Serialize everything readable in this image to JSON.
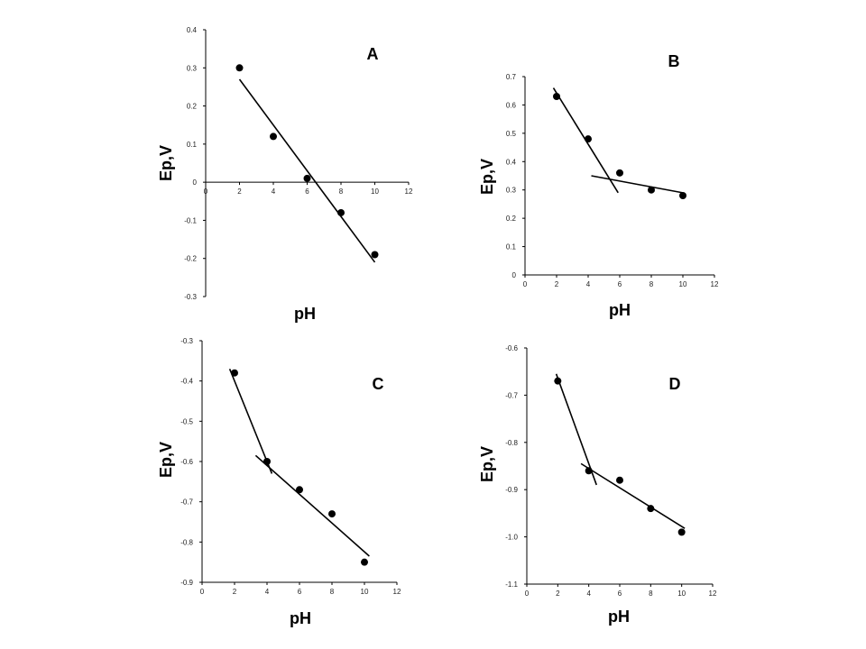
{
  "chart_data": [
    {
      "type": "scatter",
      "panel_label": "A",
      "xlabel": "pH",
      "ylabel": "Ep,V",
      "xlim": [
        0,
        12
      ],
      "ylim": [
        -0.3,
        0.4
      ],
      "x_ticks": [
        "0",
        "2",
        "4",
        "6",
        "8",
        "10",
        "12"
      ],
      "y_ticks": [
        "0.4",
        "0.3",
        "0.2",
        "0.1",
        "0",
        "-0.1",
        "-0.2",
        "-0.3"
      ],
      "points": [
        [
          2,
          0.3
        ],
        [
          4,
          0.12
        ],
        [
          6,
          0.01
        ],
        [
          8,
          -0.08
        ],
        [
          10,
          -0.19
        ]
      ],
      "fit_lines": [
        [
          [
            2,
            0.27
          ],
          [
            10,
            -0.21
          ]
        ]
      ],
      "x_axis_at_zero": true
    },
    {
      "type": "scatter",
      "panel_label": "B",
      "xlabel": "pH",
      "ylabel": "Ep,V",
      "xlim": [
        0,
        12
      ],
      "ylim": [
        0,
        0.7
      ],
      "x_ticks": [
        "0",
        "2",
        "4",
        "6",
        "8",
        "10",
        "12"
      ],
      "y_ticks": [
        "0.7",
        "0.6",
        "0.5",
        "0.4",
        "0.3",
        "0.2",
        "0.1",
        "0"
      ],
      "points": [
        [
          2,
          0.63
        ],
        [
          4,
          0.48
        ],
        [
          6,
          0.36
        ],
        [
          8,
          0.3
        ],
        [
          10,
          0.28
        ]
      ],
      "fit_lines": [
        [
          [
            1.8,
            0.66
          ],
          [
            5.9,
            0.29
          ]
        ],
        [
          [
            4.2,
            0.35
          ],
          [
            10,
            0.29
          ]
        ]
      ],
      "x_axis_at_zero": false
    },
    {
      "type": "scatter",
      "panel_label": "C",
      "xlabel": "pH",
      "ylabel": "Ep,V",
      "xlim": [
        0,
        12
      ],
      "ylim": [
        -0.9,
        -0.3
      ],
      "x_ticks": [
        "0",
        "2",
        "4",
        "6",
        "8",
        "10",
        "12"
      ],
      "y_ticks": [
        "-0.3",
        "-0.4",
        "-0.5",
        "-0.6",
        "-0.7",
        "-0.8",
        "-0.9"
      ],
      "points": [
        [
          2,
          -0.38
        ],
        [
          4,
          -0.6
        ],
        [
          6,
          -0.67
        ],
        [
          8,
          -0.73
        ],
        [
          10,
          -0.85
        ]
      ],
      "fit_lines": [
        [
          [
            1.7,
            -0.37
          ],
          [
            4.3,
            -0.63
          ]
        ],
        [
          [
            3.3,
            -0.585
          ],
          [
            10.3,
            -0.835
          ]
        ]
      ],
      "x_axis_at_zero": false
    },
    {
      "type": "scatter",
      "panel_label": "D",
      "xlabel": "pH",
      "ylabel": "Ep,V",
      "xlim": [
        0,
        12
      ],
      "ylim": [
        -1.1,
        -0.6
      ],
      "x_ticks": [
        "0",
        "2",
        "4",
        "6",
        "8",
        "10",
        "12"
      ],
      "y_ticks": [
        "-0.6",
        "-0.7",
        "-0.8",
        "-0.9",
        "-1.0",
        "-1.1"
      ],
      "points": [
        [
          2,
          -0.67
        ],
        [
          4,
          -0.86
        ],
        [
          6,
          -0.88
        ],
        [
          8,
          -0.94
        ],
        [
          10,
          -0.99
        ]
      ],
      "fit_lines": [
        [
          [
            1.9,
            -0.655
          ],
          [
            4.5,
            -0.89
          ]
        ],
        [
          [
            3.5,
            -0.845
          ],
          [
            10.2,
            -0.982
          ]
        ]
      ],
      "x_axis_at_zero": false
    }
  ]
}
